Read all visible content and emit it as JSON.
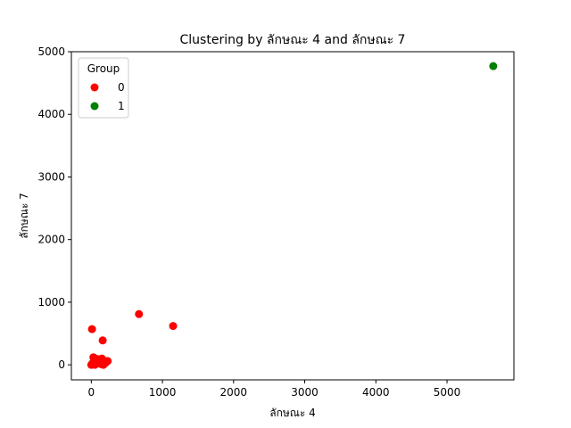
{
  "chart_data": {
    "type": "scatter",
    "title": "Clustering by ลักษณะ 4 and ลักษณะ 7",
    "xlabel": "ลักษณะ 4",
    "ylabel": "ลักษณะ 7",
    "xlim": [
      -280,
      5940
    ],
    "ylim": [
      -240,
      5000
    ],
    "xticks": [
      0,
      1000,
      2000,
      3000,
      4000,
      5000
    ],
    "yticks": [
      0,
      1000,
      2000,
      3000,
      4000,
      5000
    ],
    "grid": false,
    "legend": {
      "title": "Group",
      "placement": "top-left"
    },
    "series": [
      {
        "name": "0",
        "color": "#ff0000",
        "points": [
          [
            0,
            0
          ],
          [
            10,
            10
          ],
          [
            20,
            30
          ],
          [
            30,
            120
          ],
          [
            40,
            60
          ],
          [
            50,
            0
          ],
          [
            60,
            100
          ],
          [
            80,
            20
          ],
          [
            100,
            90
          ],
          [
            120,
            40
          ],
          [
            140,
            10
          ],
          [
            150,
            100
          ],
          [
            170,
            0
          ],
          [
            180,
            50
          ],
          [
            200,
            30
          ],
          [
            230,
            60
          ],
          [
            10,
            570
          ],
          [
            160,
            390
          ],
          [
            670,
            810
          ],
          [
            1150,
            620
          ]
        ]
      },
      {
        "name": "1",
        "color": "#008000",
        "points": [
          [
            5650,
            4770
          ]
        ]
      }
    ]
  }
}
